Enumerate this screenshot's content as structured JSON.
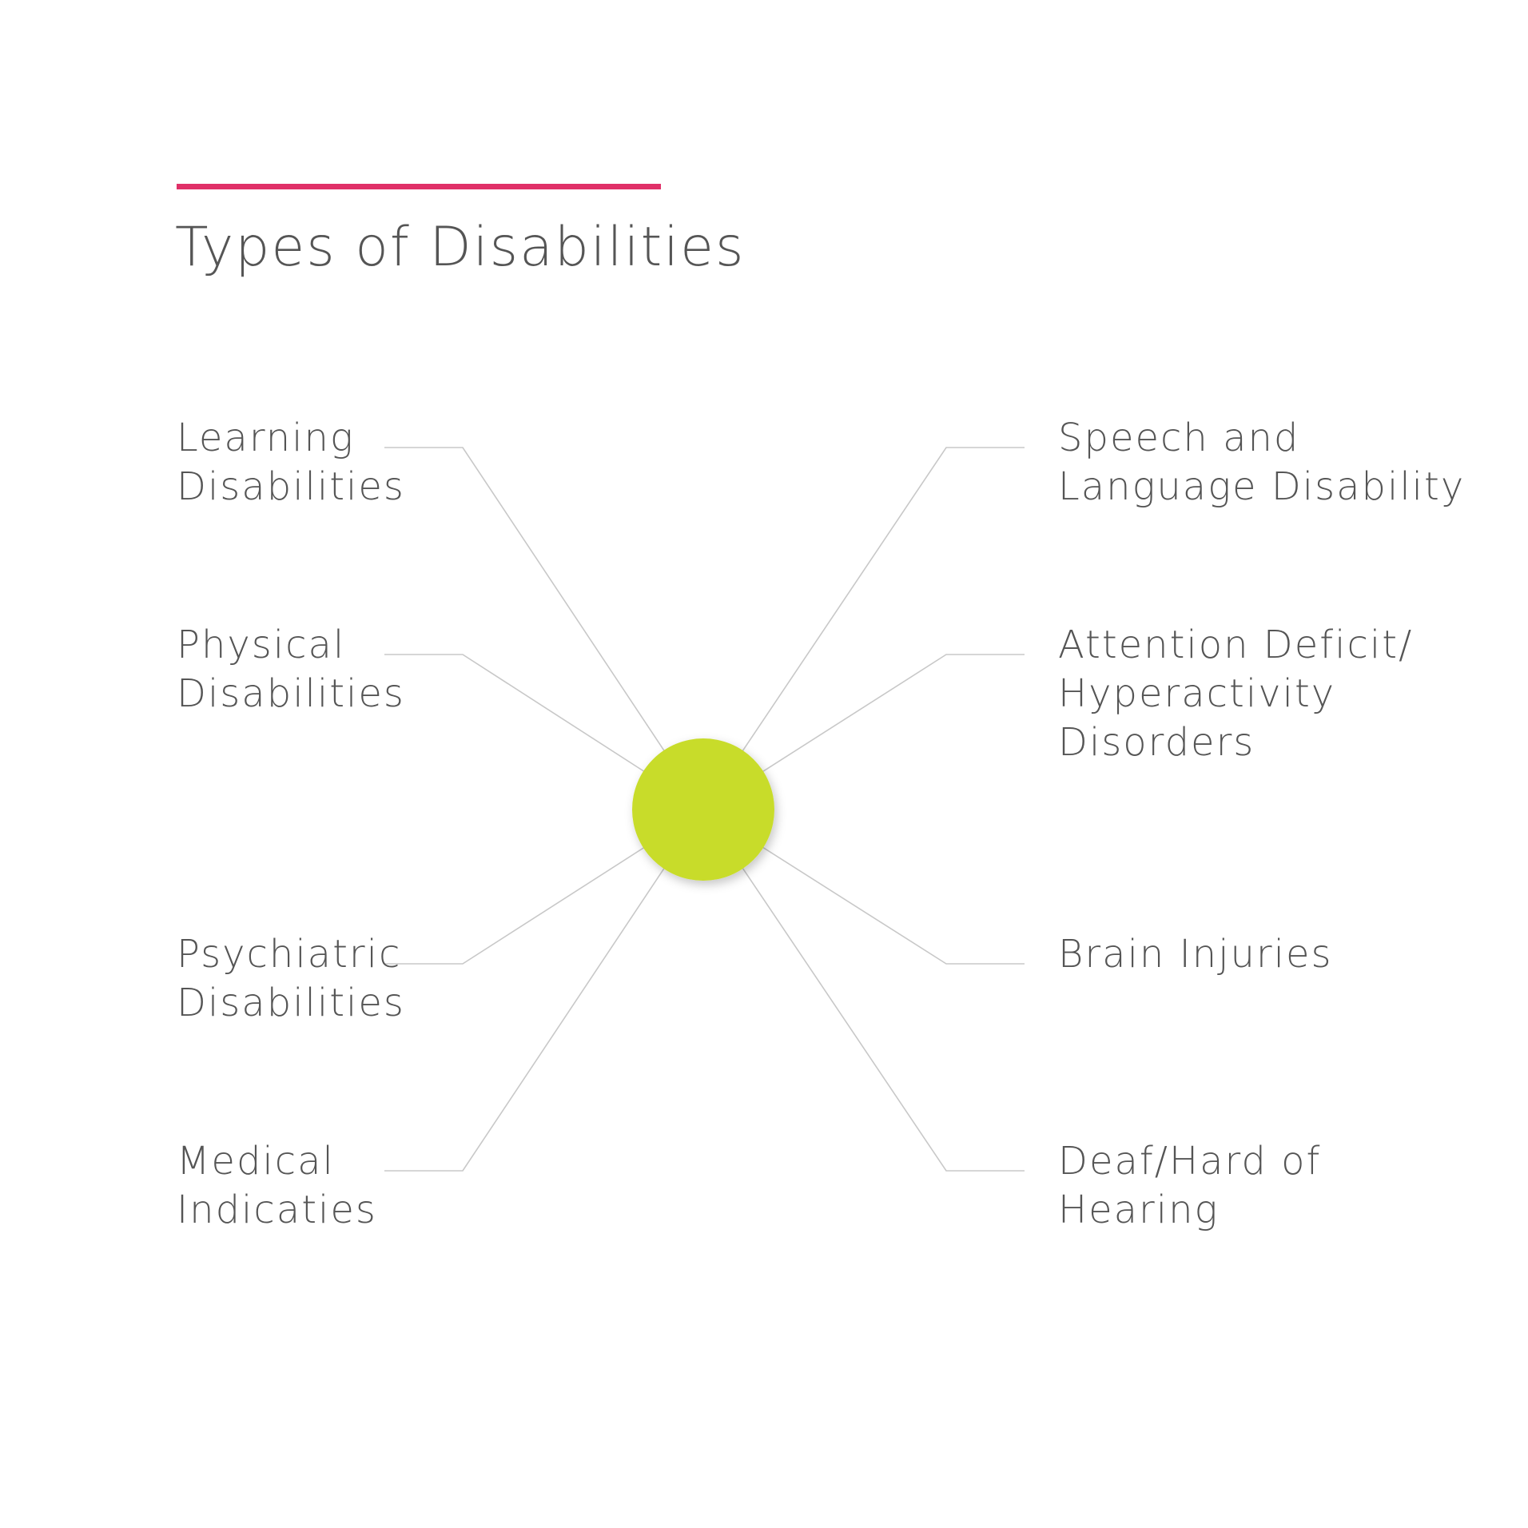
{
  "title": "Types of Disabilities",
  "colors": {
    "accent_rule": "#e03068",
    "center_node": "#c8dc2c",
    "connector": "#c8c8c8",
    "text": "#555555",
    "background": "#ffffff"
  },
  "center_node": {
    "shape": "circle"
  },
  "nodes": [
    {
      "side": "left",
      "lines": [
        "Learning",
        "Disabilities"
      ]
    },
    {
      "side": "left",
      "lines": [
        "Physical",
        "Disabilities"
      ]
    },
    {
      "side": "left",
      "lines": [
        "Psychiatric",
        "Disabilities"
      ]
    },
    {
      "side": "left",
      "lines": [
        "Medical",
        "Indicaties"
      ]
    },
    {
      "side": "right",
      "lines": [
        "Speech and",
        "Language Disability"
      ]
    },
    {
      "side": "right",
      "lines": [
        "Attention Deficit/",
        "Hyperactivity",
        "Disorders"
      ]
    },
    {
      "side": "right",
      "lines": [
        "Brain Injuries"
      ]
    },
    {
      "side": "right",
      "lines": [
        "Deaf/Hard of",
        "Hearing"
      ]
    }
  ]
}
